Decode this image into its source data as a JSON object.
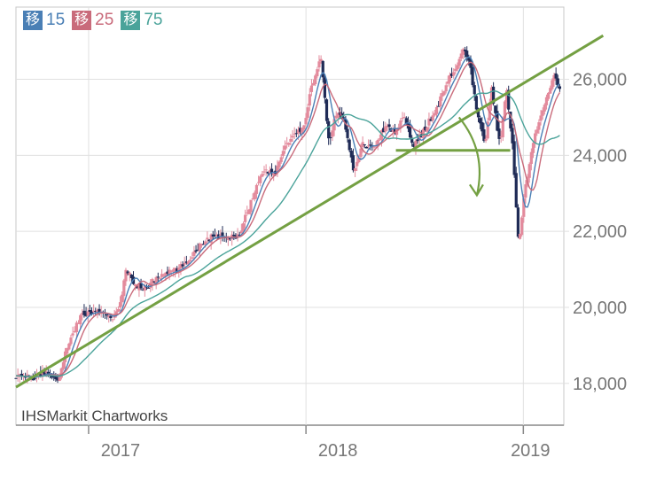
{
  "chart_data": {
    "type": "line",
    "subtype": "candlestick-with-moving-averages",
    "legend": [
      {
        "badge": "移",
        "period": "15",
        "color": "#4a7fb5"
      },
      {
        "badge": "移",
        "period": "25",
        "color": "#c96b7b"
      },
      {
        "badge": "移",
        "period": "75",
        "color": "#4aa39a"
      }
    ],
    "watermark": "IHSMarkit Chartworks",
    "x_ticks": [
      "2017",
      "2018",
      "2019"
    ],
    "y_ticks": [
      {
        "value": 18000,
        "label": "18,000"
      },
      {
        "value": 20000,
        "label": "20,000"
      },
      {
        "value": 22000,
        "label": "22,000"
      },
      {
        "value": 24000,
        "label": "24,000"
      },
      {
        "value": 26000,
        "label": "26,000"
      }
    ],
    "ylim": [
      16900,
      27900
    ],
    "x_range": [
      "2016-09-01",
      "2019-03-10"
    ],
    "price_series": [
      [
        "2016-09-01",
        18200
      ],
      [
        "2016-10-01",
        18150
      ],
      [
        "2016-10-20",
        18300
      ],
      [
        "2016-11-10",
        18100
      ],
      [
        "2016-12-01",
        19200
      ],
      [
        "2016-12-20",
        19800
      ],
      [
        "2017-01-15",
        19900
      ],
      [
        "2017-02-10",
        19700
      ],
      [
        "2017-02-25",
        20200
      ],
      [
        "2017-03-05",
        21000
      ],
      [
        "2017-03-20",
        20600
      ],
      [
        "2017-04-05",
        20500
      ],
      [
        "2017-04-20",
        20700
      ],
      [
        "2017-05-10",
        20900
      ],
      [
        "2017-06-01",
        21000
      ],
      [
        "2017-06-20",
        21300
      ],
      [
        "2017-07-10",
        21700
      ],
      [
        "2017-08-01",
        21900
      ],
      [
        "2017-08-20",
        21800
      ],
      [
        "2017-09-10",
        21900
      ],
      [
        "2017-10-01",
        22800
      ],
      [
        "2017-10-20",
        23600
      ],
      [
        "2017-11-10",
        23500
      ],
      [
        "2017-11-25",
        24200
      ],
      [
        "2017-12-10",
        24500
      ],
      [
        "2017-12-28",
        24700
      ],
      [
        "2018-01-10",
        25800
      ],
      [
        "2018-01-26",
        26600
      ],
      [
        "2018-02-09",
        24200
      ],
      [
        "2018-02-20",
        25100
      ],
      [
        "2018-03-05",
        25000
      ],
      [
        "2018-03-23",
        23500
      ],
      [
        "2018-04-05",
        24300
      ],
      [
        "2018-04-25",
        24200
      ],
      [
        "2018-05-15",
        24800
      ],
      [
        "2018-06-01",
        24600
      ],
      [
        "2018-06-15",
        25100
      ],
      [
        "2018-06-30",
        24200
      ],
      [
        "2018-07-20",
        24700
      ],
      [
        "2018-08-10",
        25300
      ],
      [
        "2018-08-25",
        25900
      ],
      [
        "2018-09-10",
        26300
      ],
      [
        "2018-09-21",
        26800
      ],
      [
        "2018-10-03",
        26400
      ],
      [
        "2018-10-15",
        25100
      ],
      [
        "2018-10-29",
        24300
      ],
      [
        "2018-11-08",
        25800
      ],
      [
        "2018-11-23",
        24200
      ],
      [
        "2018-12-03",
        25800
      ],
      [
        "2018-12-14",
        24200
      ],
      [
        "2018-12-24",
        21700
      ],
      [
        "2019-01-04",
        23100
      ],
      [
        "2019-01-20",
        24500
      ],
      [
        "2019-02-05",
        25300
      ],
      [
        "2019-02-20",
        26100
      ],
      [
        "2019-03-05",
        25700
      ]
    ],
    "annotations": {
      "trendline": {
        "start": [
          "2016-09-01",
          17900
        ],
        "end": [
          "2019-05-15",
          27150
        ],
        "color": "#74a043"
      },
      "support_line": {
        "start": [
          "2018-06-01",
          24130
        ],
        "end": [
          "2018-12-10",
          24130
        ],
        "color": "#74a043"
      },
      "arrow": {
        "start": [
          "2018-09-15",
          25000
        ],
        "control": [
          "2018-11-01",
          24100
        ],
        "end": [
          "2018-10-15",
          22950
        ],
        "color": "#74a043"
      }
    },
    "grid": true,
    "axis_position": "right"
  }
}
